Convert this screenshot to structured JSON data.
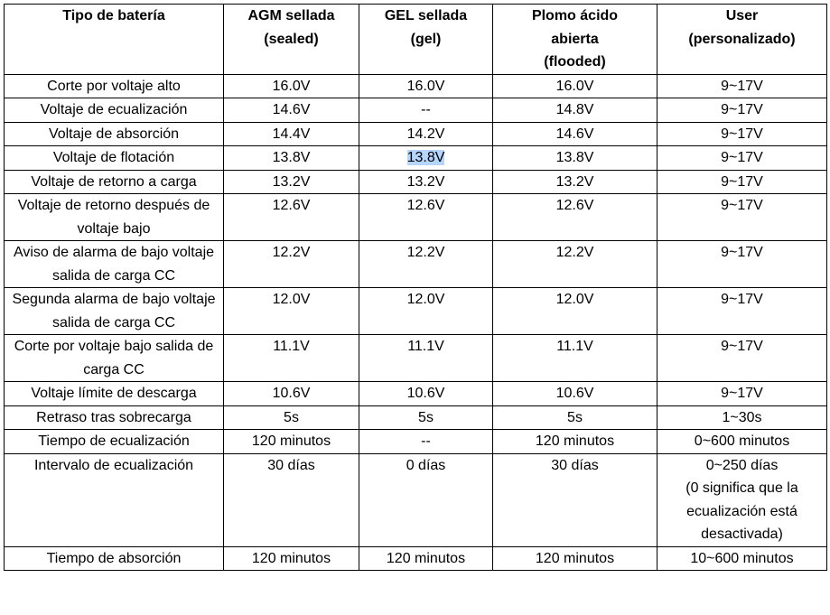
{
  "table": {
    "header": [
      "Tipo de batería",
      "AGM sellada\n(sealed)",
      "GEL sellada\n(gel)",
      "Plomo ácido\nabierta\n(flooded)",
      "User\n(personalizado)"
    ],
    "rows": [
      [
        "Corte por voltaje alto",
        "16.0V",
        "16.0V",
        "16.0V",
        "9~17V"
      ],
      [
        "Voltaje de ecualización",
        "14.6V",
        "--",
        "14.8V",
        "9~17V"
      ],
      [
        "Voltaje de absorción",
        "14.4V",
        "14.2V",
        "14.6V",
        "9~17V"
      ],
      [
        "Voltaje de flotación",
        "13.8V",
        "13.8V",
        "13.8V",
        "9~17V"
      ],
      [
        "Voltaje de retorno a carga",
        "13.2V",
        "13.2V",
        "13.2V",
        "9~17V"
      ],
      [
        "Voltaje de retorno después de voltaje bajo",
        "12.6V",
        "12.6V",
        "12.6V",
        "9~17V"
      ],
      [
        "Aviso de alarma de bajo voltaje salida de carga CC",
        "12.2V",
        "12.2V",
        "12.2V",
        "9~17V"
      ],
      [
        "Segunda alarma de bajo voltaje salida de carga CC",
        "12.0V",
        "12.0V",
        "12.0V",
        "9~17V"
      ],
      [
        "Corte por voltaje bajo salida de carga CC",
        "11.1V",
        "11.1V",
        "11.1V",
        "9~17V"
      ],
      [
        "Voltaje límite de descarga",
        "10.6V",
        "10.6V",
        "10.6V",
        "9~17V"
      ],
      [
        "Retraso tras sobrecarga",
        "5s",
        "5s",
        "5s",
        "1~30s"
      ],
      [
        "Tiempo de ecualización",
        "120 minutos",
        "--",
        "120 minutos",
        "0~600 minutos"
      ],
      [
        "Intervalo de ecualización",
        "30 días",
        "0 días",
        "30 días",
        "0~250 días\n(0 significa que la ecualización está desactivada)"
      ],
      [
        "Tiempo de absorción",
        "120 minutos",
        "120 minutos",
        "120 minutos",
        "10~600 minutos"
      ]
    ]
  }
}
